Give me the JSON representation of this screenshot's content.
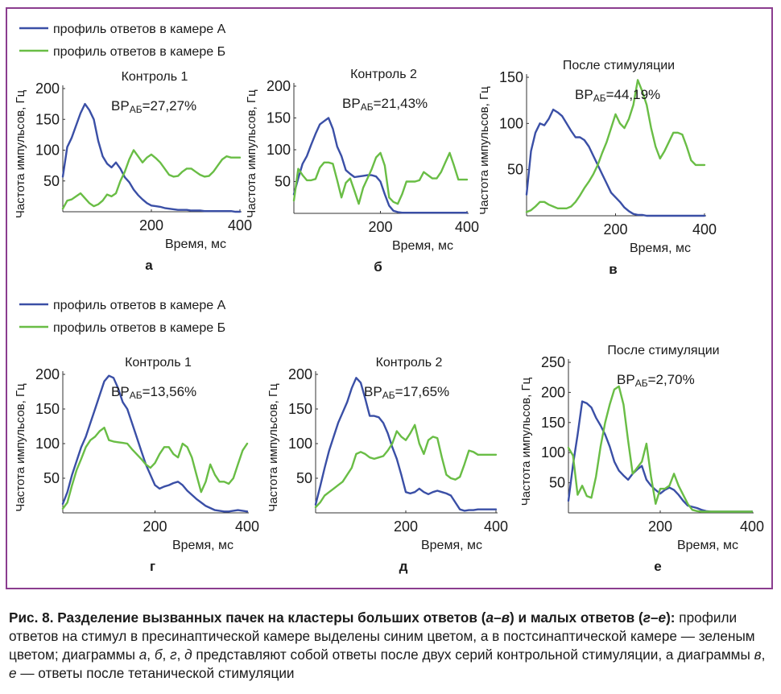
{
  "colors": {
    "blue": "#3a4fa6",
    "green": "#69bd45",
    "frame": "#8b3d8f"
  },
  "legends": [
    {
      "series_a": "профиль ответов в камере А",
      "series_b": "профиль ответов в камере Б"
    },
    {
      "series_a": "профиль ответов в камере А",
      "series_b": "профиль ответов в камере Б"
    }
  ],
  "caption": {
    "title": "Рис. 8. Разделение вызванных пачек на кластеры больших ответов (",
    "title_a": "а",
    "title_dash1": "–",
    "title_v": "в",
    "title_mid": ") и малых ответов (",
    "title_g": "г",
    "title_dash2": "–",
    "title_e": "е",
    "title_end": "):",
    "text1": " профили ответов на стимул в пресинаптической камере выделены синим цветом, а в постсинаптической камере — зеленым цветом; диаграммы ",
    "it_a": "а",
    "sep1": ", ",
    "it_b": "б",
    "sep2": ", ",
    "it_g": "г",
    "sep3": ", ",
    "it_d": "д",
    "text2": " представляют собой ответы после двух серий контрольной стимуляции, а диаграммы ",
    "it_v": "в",
    "sep4": ", ",
    "it_e": "е",
    "text3": " — ответы после тетанической стимуляции"
  },
  "chart_data": [
    {
      "type": "line",
      "panel_label": "а",
      "title": "Контроль 1",
      "xlabel": "Время, мс",
      "ylabel": "Частота импульсов, Гц",
      "annotation_main": "BP",
      "annotation_sub": "АБ",
      "annotation_value": "=27,27%",
      "xlim": [
        0,
        400
      ],
      "ylim": [
        0,
        200
      ],
      "xticks": [
        200,
        400
      ],
      "yticks": [
        50,
        100,
        150,
        200
      ],
      "x": [
        0,
        10,
        20,
        30,
        40,
        50,
        60,
        70,
        80,
        90,
        100,
        110,
        120,
        130,
        140,
        150,
        160,
        170,
        180,
        190,
        200,
        210,
        220,
        230,
        240,
        250,
        260,
        270,
        280,
        290,
        300,
        310,
        320,
        330,
        340,
        350,
        360,
        370,
        380,
        390,
        400
      ],
      "series": [
        {
          "name": "профиль ответов в камере А",
          "color": "blue",
          "values": [
            57,
            105,
            120,
            140,
            160,
            175,
            165,
            150,
            115,
            90,
            78,
            72,
            80,
            70,
            56,
            48,
            36,
            27,
            20,
            14,
            10,
            9,
            8,
            6,
            5,
            4,
            3,
            3,
            3,
            2,
            2,
            2,
            1,
            1,
            1,
            1,
            1,
            1,
            1,
            0,
            0
          ]
        },
        {
          "name": "профиль ответов в камере Б",
          "color": "green",
          "values": [
            5,
            18,
            20,
            25,
            30,
            22,
            14,
            9,
            12,
            18,
            28,
            25,
            30,
            50,
            65,
            85,
            100,
            90,
            80,
            88,
            93,
            87,
            80,
            70,
            60,
            57,
            58,
            65,
            70,
            70,
            65,
            60,
            57,
            58,
            65,
            75,
            85,
            90,
            88,
            88,
            88
          ]
        }
      ]
    },
    {
      "type": "line",
      "panel_label": "б",
      "title": "Контроль 2",
      "xlabel": "Время, мс",
      "ylabel": "Частота импульсов, Гц",
      "annotation_main": "BP",
      "annotation_sub": "АБ",
      "annotation_value": "=21,43%",
      "xlim": [
        0,
        400
      ],
      "ylim": [
        0,
        200
      ],
      "xticks": [
        200,
        400
      ],
      "yticks": [
        50,
        100,
        150,
        200
      ],
      "x": [
        0,
        10,
        20,
        30,
        40,
        50,
        60,
        70,
        80,
        90,
        100,
        110,
        120,
        130,
        140,
        150,
        160,
        170,
        180,
        190,
        200,
        210,
        220,
        230,
        240,
        250,
        260,
        270,
        280,
        290,
        300,
        310,
        320,
        330,
        340,
        350,
        360,
        370,
        380,
        390,
        400
      ],
      "series": [
        {
          "name": "профиль ответов в камере А",
          "color": "blue",
          "values": [
            30,
            55,
            78,
            90,
            108,
            125,
            140,
            145,
            150,
            133,
            105,
            90,
            68,
            62,
            57,
            58,
            59,
            60,
            60,
            58,
            50,
            30,
            12,
            4,
            2,
            1,
            1,
            1,
            1,
            1,
            1,
            1,
            1,
            1,
            1,
            1,
            1,
            1,
            1,
            1,
            1
          ]
        },
        {
          "name": "профиль ответов в камере Б",
          "color": "green",
          "values": [
            20,
            70,
            60,
            52,
            52,
            54,
            72,
            80,
            80,
            78,
            52,
            25,
            48,
            55,
            35,
            15,
            40,
            55,
            70,
            88,
            95,
            75,
            25,
            18,
            15,
            30,
            50,
            50,
            50,
            52,
            65,
            60,
            55,
            55,
            65,
            80,
            95,
            75,
            53,
            53,
            53
          ]
        }
      ]
    },
    {
      "type": "line",
      "panel_label": "в",
      "title": "После стимуляции",
      "xlabel": "Время, мс",
      "ylabel": "Частота импульсов, Гц",
      "annotation_main": "BP",
      "annotation_sub": "АБ",
      "annotation_value": "=44,19%",
      "xlim": [
        0,
        400
      ],
      "ylim": [
        0,
        150
      ],
      "xticks": [
        200,
        400
      ],
      "yticks": [
        50,
        100,
        150
      ],
      "x": [
        0,
        10,
        20,
        30,
        40,
        50,
        60,
        70,
        80,
        90,
        100,
        110,
        120,
        130,
        140,
        150,
        160,
        170,
        180,
        190,
        200,
        210,
        220,
        230,
        240,
        250,
        260,
        270,
        280,
        290,
        300,
        310,
        320,
        330,
        340,
        350,
        360,
        370,
        380,
        390,
        400
      ],
      "series": [
        {
          "name": "профиль ответов в камере А",
          "color": "blue",
          "values": [
            23,
            70,
            90,
            100,
            98,
            105,
            115,
            112,
            108,
            100,
            92,
            85,
            85,
            82,
            75,
            65,
            55,
            45,
            35,
            25,
            20,
            15,
            9,
            5,
            2,
            1,
            1,
            0,
            0,
            0,
            0,
            0,
            0,
            0,
            0,
            0,
            0,
            0,
            0,
            0,
            0
          ]
        },
        {
          "name": "профиль ответов в камере Б",
          "color": "green",
          "values": [
            4,
            6,
            10,
            15,
            15,
            12,
            10,
            8,
            8,
            8,
            10,
            15,
            22,
            30,
            37,
            45,
            55,
            68,
            80,
            95,
            110,
            100,
            95,
            105,
            120,
            147,
            135,
            120,
            95,
            75,
            62,
            70,
            80,
            90,
            90,
            88,
            75,
            60,
            55,
            55,
            55
          ]
        }
      ]
    },
    {
      "type": "line",
      "panel_label": "г",
      "title": "Контроль 1",
      "xlabel": "Время, мс",
      "ylabel": "Частота импульсов, Гц",
      "annotation_main": "BP",
      "annotation_sub": "АБ",
      "annotation_value": "=13,56%",
      "xlim": [
        0,
        400
      ],
      "ylim": [
        0,
        200
      ],
      "xticks": [
        200,
        400
      ],
      "yticks": [
        50,
        100,
        150,
        200
      ],
      "x": [
        0,
        10,
        20,
        30,
        40,
        50,
        60,
        70,
        80,
        90,
        100,
        110,
        120,
        130,
        140,
        150,
        160,
        170,
        180,
        190,
        200,
        210,
        220,
        230,
        240,
        250,
        260,
        270,
        280,
        290,
        300,
        310,
        320,
        330,
        340,
        350,
        360,
        370,
        380,
        390,
        400
      ],
      "series": [
        {
          "name": "профиль ответов в камере А",
          "color": "blue",
          "values": [
            13,
            30,
            55,
            75,
            95,
            110,
            130,
            150,
            170,
            190,
            198,
            195,
            180,
            160,
            150,
            130,
            110,
            90,
            70,
            55,
            40,
            35,
            38,
            40,
            43,
            45,
            40,
            32,
            26,
            20,
            15,
            10,
            7,
            4,
            3,
            2,
            2,
            3,
            4,
            3,
            2
          ]
        },
        {
          "name": "профиль ответов в камере Б",
          "color": "green",
          "values": [
            6,
            15,
            40,
            62,
            78,
            95,
            105,
            110,
            118,
            123,
            105,
            103,
            102,
            101,
            100,
            92,
            85,
            78,
            70,
            65,
            72,
            85,
            95,
            95,
            85,
            80,
            100,
            95,
            80,
            55,
            30,
            45,
            70,
            55,
            45,
            45,
            42,
            50,
            70,
            90,
            100
          ]
        }
      ]
    },
    {
      "type": "line",
      "panel_label": "д",
      "title": "Контроль 2",
      "xlabel": "Время, мс",
      "ylabel": "Частота импульсов, Гц",
      "annotation_main": "BP",
      "annotation_sub": "АБ",
      "annotation_value": "=17,65%",
      "xlim": [
        0,
        400
      ],
      "ylim": [
        0,
        200
      ],
      "xticks": [
        200,
        400
      ],
      "yticks": [
        50,
        100,
        150,
        200
      ],
      "x": [
        0,
        10,
        20,
        30,
        40,
        50,
        60,
        70,
        80,
        90,
        100,
        110,
        120,
        130,
        140,
        150,
        160,
        170,
        180,
        190,
        200,
        210,
        220,
        230,
        240,
        250,
        260,
        270,
        280,
        290,
        300,
        310,
        320,
        330,
        340,
        350,
        360,
        370,
        380,
        390,
        400
      ],
      "series": [
        {
          "name": "профиль ответов в камере А",
          "color": "blue",
          "values": [
            12,
            38,
            65,
            90,
            110,
            130,
            145,
            160,
            180,
            195,
            188,
            165,
            140,
            140,
            138,
            130,
            115,
            95,
            78,
            55,
            30,
            28,
            30,
            35,
            30,
            27,
            30,
            32,
            30,
            28,
            25,
            15,
            5,
            3,
            4,
            4,
            5,
            5,
            5,
            5,
            5
          ]
        },
        {
          "name": "профиль ответов в камере Б",
          "color": "green",
          "values": [
            8,
            15,
            25,
            30,
            35,
            40,
            45,
            55,
            65,
            85,
            88,
            85,
            80,
            78,
            80,
            82,
            90,
            100,
            118,
            110,
            105,
            115,
            127,
            100,
            85,
            105,
            110,
            108,
            80,
            55,
            50,
            48,
            52,
            70,
            90,
            88,
            84,
            84,
            84,
            84,
            84
          ]
        }
      ]
    },
    {
      "type": "line",
      "panel_label": "е",
      "title": "После стимуляции",
      "xlabel": "Время, мс",
      "ylabel": "Частота импульсов, Гц",
      "annotation_main": "BP",
      "annotation_sub": "АБ",
      "annotation_value": "=2,70%",
      "xlim": [
        0,
        400
      ],
      "ylim": [
        0,
        250
      ],
      "xticks": [
        200,
        400
      ],
      "yticks": [
        50,
        100,
        150,
        200,
        250
      ],
      "x": [
        0,
        10,
        20,
        30,
        40,
        50,
        60,
        70,
        80,
        90,
        100,
        110,
        120,
        130,
        140,
        150,
        160,
        170,
        180,
        190,
        200,
        210,
        220,
        230,
        240,
        250,
        260,
        270,
        280,
        290,
        300,
        310,
        320,
        330,
        340,
        350,
        360,
        370,
        380,
        390,
        400
      ],
      "series": [
        {
          "name": "профиль ответов в камере А",
          "color": "blue",
          "values": [
            20,
            80,
            130,
            185,
            182,
            175,
            158,
            145,
            130,
            110,
            85,
            70,
            62,
            55,
            65,
            72,
            78,
            55,
            45,
            38,
            32,
            38,
            42,
            38,
            30,
            20,
            12,
            10,
            8,
            5,
            3,
            2,
            2,
            2,
            2,
            2,
            2,
            2,
            2,
            2,
            2
          ]
        },
        {
          "name": "профиль ответов в камере Б",
          "color": "green",
          "values": [
            108,
            95,
            30,
            45,
            28,
            25,
            60,
            110,
            150,
            180,
            205,
            210,
            180,
            120,
            65,
            75,
            85,
            115,
            60,
            15,
            40,
            40,
            45,
            65,
            45,
            30,
            15,
            5,
            3,
            2,
            2,
            2,
            2,
            2,
            2,
            2,
            2,
            2,
            2,
            2,
            2
          ]
        }
      ]
    }
  ]
}
